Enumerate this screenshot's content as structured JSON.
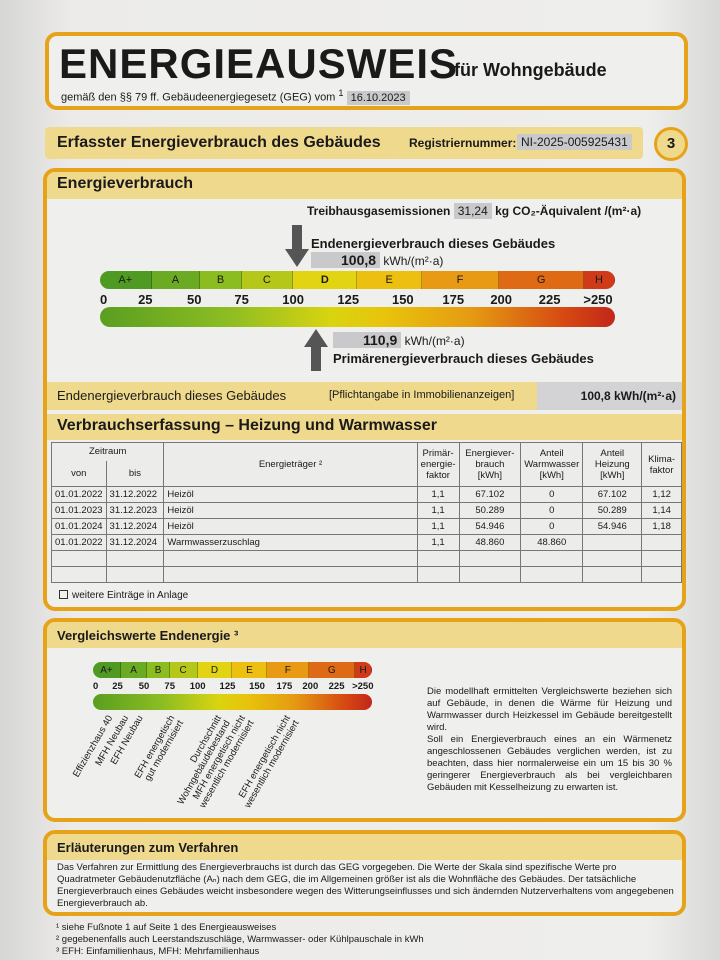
{
  "header": {
    "title": "ENERGIEAUSWEIS",
    "subtitle": "für Wohngebäude",
    "legal": "gemäß den §§ 79 ff. Gebäudeenergiegesetz (GEG) vom",
    "legal_sup": "1",
    "date": "16.10.2023"
  },
  "section": {
    "title": "Erfasster Energieverbrauch des Gebäudes",
    "reg_label": "Registriernummer:",
    "reg_value": "NI-2025-005925431",
    "page": "3"
  },
  "energy": {
    "title": "Energieverbrauch",
    "ghg_label": "Treibhausgasemissionen",
    "ghg_value": "31,24",
    "ghg_unit": "kg CO₂-Äquivalent /(m²·a)",
    "end_label": "Endenergieverbrauch dieses Gebäudes",
    "end_value": "100,8",
    "end_unit": "kWh/(m²·a)",
    "primary_value": "110,9",
    "primary_unit": "kWh/(m²·a)",
    "primary_label": "Primärenergieverbrauch dieses Gebäudes",
    "end_value_number": 100.8,
    "primary_value_number": 110.9,
    "classes": [
      "A+",
      "A",
      "B",
      "C",
      "D",
      "E",
      "F",
      "G",
      "H"
    ],
    "highlighted_class": "D",
    "ticks": [
      "0",
      "25",
      "50",
      "75",
      "100",
      "125",
      "150",
      "175",
      "200",
      "225",
      ">250"
    ],
    "colors": {
      "frame": "#e6a31a",
      "header": "#efd98d"
    }
  },
  "end_row": {
    "label": "Endenergieverbrauch dieses Gebäudes",
    "note": "[Pflichtangabe in Immobilienanzeigen]",
    "value": "100,8 kWh/(m²·a)"
  },
  "consumption": {
    "title": "Verbrauchserfassung – Heizung und Warmwasser",
    "headers": {
      "period": "Zeitraum",
      "from": "von",
      "to": "bis",
      "carrier": "Energieträger ²",
      "pef": "Primär-energie-faktor",
      "use": "Energiever-brauch [kWh]",
      "ww": "Anteil Warmwasser [kWh]",
      "heat": "Anteil Heizung [kWh]",
      "clima": "Klima-faktor"
    },
    "rows": [
      [
        "01.01.2022",
        "31.12.2022",
        "Heizöl",
        "1,1",
        "67.102",
        "0",
        "67.102",
        "1,12"
      ],
      [
        "01.01.2023",
        "31.12.2023",
        "Heizöl",
        "1,1",
        "50.289",
        "0",
        "50.289",
        "1,14"
      ],
      [
        "01.01.2024",
        "31.12.2024",
        "Heizöl",
        "1,1",
        "54.946",
        "0",
        "54.946",
        "1,18"
      ],
      [
        "01.01.2022",
        "31.12.2024",
        "Warmwasserzuschlag",
        "1,1",
        "48.860",
        "48.860",
        "",
        ""
      ],
      [
        "",
        "",
        "",
        "",
        "",
        "",
        "",
        ""
      ],
      [
        "",
        "",
        "",
        "",
        "",
        "",
        "",
        ""
      ]
    ],
    "more": "weitere Einträge in Anlage"
  },
  "compare": {
    "title": "Vergleichswerte Endenergie ³",
    "labels": [
      "Effizienzhaus 40",
      "MFH Neubau",
      "EFH Neubau",
      "EFH energetisch\ngut modernisiert",
      "Durchschnitt\nWohngebäudebestand",
      "MFH energetisch nicht\nwesentlich modernisiert",
      "EFH energetisch nicht\nwesentlich modernisiert"
    ],
    "text1": "Die modellhaft ermittelten Vergleichswerte beziehen sich auf Gebäude, in denen die Wärme für Heizung und Warmwasser durch Heizkessel im Gebäude bereitgestellt wird.",
    "text2": "Soll ein Energieverbrauch eines an ein Wärmenetz angeschlossenen Gebäudes verglichen werden, ist zu beachten, dass hier normalerweise ein um 15 bis 30 % geringerer Energieverbrauch als bei vergleichbaren Gebäuden mit Kesselheizung zu erwarten ist."
  },
  "explain": {
    "title": "Erläuterungen zum Verfahren",
    "text": "Das Verfahren zur Ermittlung des Energieverbrauchs ist durch das GEG vorgegeben. Die Werte der Skala sind spezifische Werte pro Quadratmeter Gebäudenutzfläche (Aₙ) nach dem GEG, die im Allgemeinen größer ist als die Wohnfläche des Gebäudes. Der tatsächliche Energieverbrauch eines Gebäudes weicht insbesondere wegen des Witterungseinflusses und sich ändernden Nutzerverhaltens vom angegebenen Energieverbrauch ab."
  },
  "footnotes": [
    "¹ siehe Fußnote 1 auf Seite 1 des Energieausweises",
    "² gegebenenfalls auch Leerstandszuschläge, Warmwasser- oder Kühlpauschale in kWh",
    "³ EFH: Einfamilienhaus, MFH: Mehrfamilienhaus"
  ]
}
